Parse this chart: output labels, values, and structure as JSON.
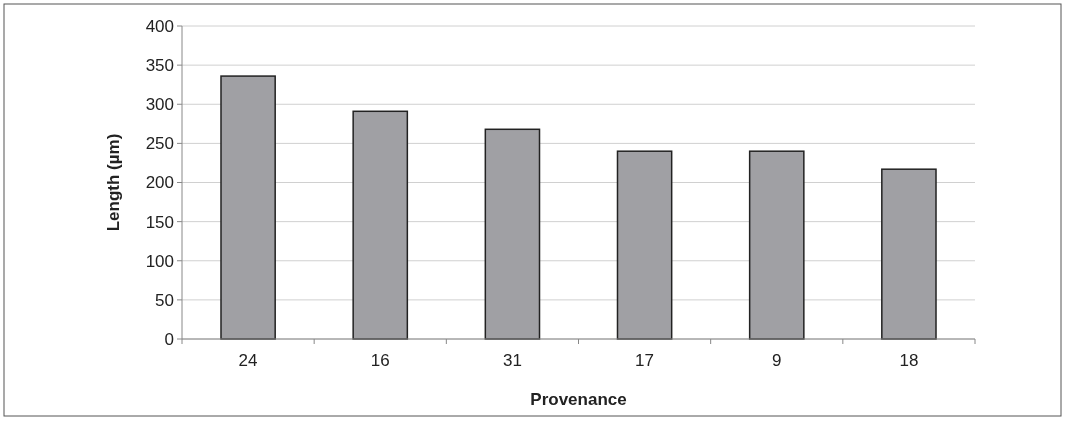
{
  "chart_data": {
    "type": "bar",
    "xlabel": "Provenance",
    "ylabel": "Length (µm)",
    "categories": [
      "24",
      "16",
      "31",
      "17",
      "9",
      "18"
    ],
    "values": [
      336,
      291,
      268,
      240,
      240,
      217
    ],
    "color": "#a0a0a4",
    "ylim": [
      0,
      400
    ],
    "yticks": [
      0,
      50,
      100,
      150,
      200,
      250,
      300,
      350,
      400
    ],
    "grid": "y"
  }
}
